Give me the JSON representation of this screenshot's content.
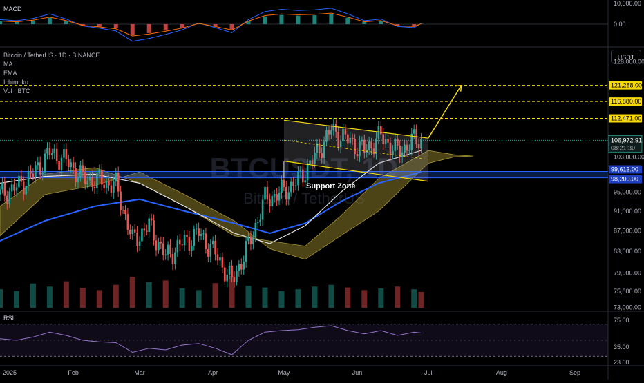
{
  "macd_panel": {
    "label": "MACD",
    "ticks": [
      "10,000.00",
      "0.00"
    ]
  },
  "price_panel": {
    "legend": [
      "Bitcoin / TetherUS · 1D · BINANCE",
      "MA",
      "EMA",
      "Ichimoku",
      "Vol · BTC"
    ],
    "currency_button": "USDT",
    "watermark_symbol": "BTCUSDT, 1D",
    "watermark_name": "Bitcoin / TetherUS",
    "annotation": "Support Zone",
    "price_ticks": [
      "128,000.00",
      "103,000.00",
      "95,000.00",
      "91,000.00",
      "87,000.00",
      "83,000.00",
      "79,000.00",
      "75,800.00",
      "73,000.00"
    ],
    "level_tags": [
      {
        "value": "121,288.00",
        "kind": "target"
      },
      {
        "value": "116,880.00",
        "kind": "target"
      },
      {
        "value": "112,471.00",
        "kind": "target"
      },
      {
        "value": "99,613.00",
        "kind": "support"
      },
      {
        "value": "98,200.00",
        "kind": "support"
      }
    ],
    "current_price": "106,972.91",
    "countdown": "08:21:30",
    "colors": {
      "up": "#26a69a",
      "down": "#ef5350",
      "target": "#f5d90a",
      "support": "#2962ff",
      "ma": "#e6e6e6",
      "ema": "#2962ff",
      "cloud": "#8a7a28"
    }
  },
  "rsi_panel": {
    "label": "RSI",
    "ticks": [
      "75.00",
      "35.00",
      "23.00"
    ]
  },
  "time_axis": [
    "2025",
    "Feb",
    "Mar",
    "Apr",
    "May",
    "Jun",
    "Jul",
    "Aug",
    "Sep"
  ],
  "chart_data": {
    "type": "candlestick",
    "symbol": "Bitcoin / TetherUS",
    "interval": "1D",
    "exchange": "BINANCE",
    "x_range": [
      "2025-01-01",
      "2025-09-15"
    ],
    "y_range": [
      72500,
      132000
    ],
    "y_scale": "log",
    "weekly_closes": [
      {
        "date": "2025-01-01",
        "close": 94500
      },
      {
        "date": "2025-01-08",
        "close": 96000
      },
      {
        "date": "2025-01-15",
        "close": 99000
      },
      {
        "date": "2025-01-22",
        "close": 104000
      },
      {
        "date": "2025-01-29",
        "close": 102000
      },
      {
        "date": "2025-02-05",
        "close": 98000
      },
      {
        "date": "2025-02-12",
        "close": 97500
      },
      {
        "date": "2025-02-19",
        "close": 96500
      },
      {
        "date": "2025-02-26",
        "close": 85000
      },
      {
        "date": "2025-03-05",
        "close": 88000
      },
      {
        "date": "2025-03-12",
        "close": 82000
      },
      {
        "date": "2025-03-19",
        "close": 84500
      },
      {
        "date": "2025-03-26",
        "close": 86500
      },
      {
        "date": "2025-04-02",
        "close": 82500
      },
      {
        "date": "2025-04-09",
        "close": 77500
      },
      {
        "date": "2025-04-16",
        "close": 84000
      },
      {
        "date": "2025-04-23",
        "close": 93500
      },
      {
        "date": "2025-04-30",
        "close": 95000
      },
      {
        "date": "2025-05-07",
        "close": 97500
      },
      {
        "date": "2025-05-14",
        "close": 103000
      },
      {
        "date": "2025-05-21",
        "close": 109500
      },
      {
        "date": "2025-05-28",
        "close": 107000
      },
      {
        "date": "2025-06-04",
        "close": 104500
      },
      {
        "date": "2025-06-11",
        "close": 108000
      },
      {
        "date": "2025-06-18",
        "close": 104000
      },
      {
        "date": "2025-06-25",
        "close": 107000
      },
      {
        "date": "2025-06-28",
        "close": 106972.91
      }
    ],
    "ma": [
      {
        "date": "2025-01-01",
        "value": 97000
      },
      {
        "date": "2025-01-20",
        "value": 98500
      },
      {
        "date": "2025-02-10",
        "value": 99000
      },
      {
        "date": "2025-03-01",
        "value": 97000
      },
      {
        "date": "2025-03-20",
        "value": 92000
      },
      {
        "date": "2025-04-10",
        "value": 86500
      },
      {
        "date": "2025-04-25",
        "value": 84500
      },
      {
        "date": "2025-05-10",
        "value": 88000
      },
      {
        "date": "2025-05-25",
        "value": 95000
      },
      {
        "date": "2025-06-10",
        "value": 101500
      },
      {
        "date": "2025-06-28",
        "value": 104500
      }
    ],
    "ema": [
      {
        "date": "2025-01-01",
        "value": 85000
      },
      {
        "date": "2025-01-20",
        "value": 89000
      },
      {
        "date": "2025-02-10",
        "value": 92000
      },
      {
        "date": "2025-03-01",
        "value": 93500
      },
      {
        "date": "2025-03-20",
        "value": 91000
      },
      {
        "date": "2025-04-10",
        "value": 88500
      },
      {
        "date": "2025-04-25",
        "value": 86500
      },
      {
        "date": "2025-05-10",
        "value": 88500
      },
      {
        "date": "2025-05-25",
        "value": 93000
      },
      {
        "date": "2025-06-10",
        "value": 97000
      },
      {
        "date": "2025-06-28",
        "value": 99500
      }
    ],
    "ichimoku_cloud": {
      "span_a": [
        {
          "date": "2025-01-01",
          "value": 92000
        },
        {
          "date": "2025-01-20",
          "value": 99000
        },
        {
          "date": "2025-02-10",
          "value": 100500
        },
        {
          "date": "2025-03-01",
          "value": 97000
        },
        {
          "date": "2025-03-20",
          "value": 92000
        },
        {
          "date": "2025-04-10",
          "value": 86000
        },
        {
          "date": "2025-04-25",
          "value": 85000
        },
        {
          "date": "2025-05-10",
          "value": 84000
        },
        {
          "date": "2025-05-25",
          "value": 90000
        },
        {
          "date": "2025-06-10",
          "value": 98000
        },
        {
          "date": "2025-07-01",
          "value": 104500
        },
        {
          "date": "2025-07-12",
          "value": 103500
        },
        {
          "date": "2025-07-20",
          "value": 103200
        }
      ],
      "span_b": [
        {
          "date": "2025-01-01",
          "value": 86000
        },
        {
          "date": "2025-01-20",
          "value": 94500
        },
        {
          "date": "2025-02-10",
          "value": 96500
        },
        {
          "date": "2025-03-01",
          "value": 99500
        },
        {
          "date": "2025-03-20",
          "value": 94500
        },
        {
          "date": "2025-04-10",
          "value": 89000
        },
        {
          "date": "2025-04-25",
          "value": 83500
        },
        {
          "date": "2025-05-10",
          "value": 81500
        },
        {
          "date": "2025-05-25",
          "value": 86000
        },
        {
          "date": "2025-06-10",
          "value": 91000
        },
        {
          "date": "2025-07-01",
          "value": 101500
        },
        {
          "date": "2025-07-12",
          "value": 103000
        },
        {
          "date": "2025-07-20",
          "value": 103200
        }
      ]
    },
    "channel": {
      "upper": [
        {
          "date": "2025-05-01",
          "value": 112000
        },
        {
          "date": "2025-07-01",
          "value": 107500
        }
      ],
      "lower": [
        {
          "date": "2025-05-01",
          "value": 102000
        },
        {
          "date": "2025-07-01",
          "value": 97400
        }
      ],
      "mid": [
        {
          "date": "2025-05-01",
          "value": 107000
        },
        {
          "date": "2025-07-01",
          "value": 102400
        }
      ]
    },
    "projection_arrow": [
      {
        "date": "2025-07-01",
        "value": 107500
      },
      {
        "date": "2025-07-15",
        "value": 121288
      }
    ],
    "levels": [
      121288,
      116880,
      112471,
      99613,
      98200
    ],
    "support_zone": [
      98200,
      99613
    ],
    "current_price": 106972.91,
    "volume_weekly": [
      42,
      38,
      55,
      48,
      60,
      45,
      40,
      52,
      70,
      58,
      62,
      44,
      40,
      56,
      72,
      50,
      46,
      38,
      42,
      48,
      52,
      46,
      40,
      44,
      48,
      42,
      36
    ],
    "rsi": {
      "y_range": [
        20,
        80
      ],
      "overbought": 70,
      "oversold": 30,
      "weekly": [
        52,
        50,
        54,
        60,
        56,
        50,
        48,
        47,
        35,
        40,
        38,
        44,
        46,
        40,
        32,
        50,
        60,
        62,
        63,
        66,
        68,
        62,
        58,
        62,
        56,
        60,
        59
      ]
    },
    "macd": {
      "y_range": [
        -6000,
        6000
      ],
      "weekly_hist": [
        800,
        600,
        1000,
        1800,
        900,
        -300,
        -700,
        -1200,
        -3000,
        -2500,
        -1800,
        -1000,
        200,
        -600,
        -1500,
        800,
        2200,
        2600,
        2400,
        2500,
        2800,
        1800,
        600,
        900,
        -400,
        -600,
        100
      ]
    }
  }
}
